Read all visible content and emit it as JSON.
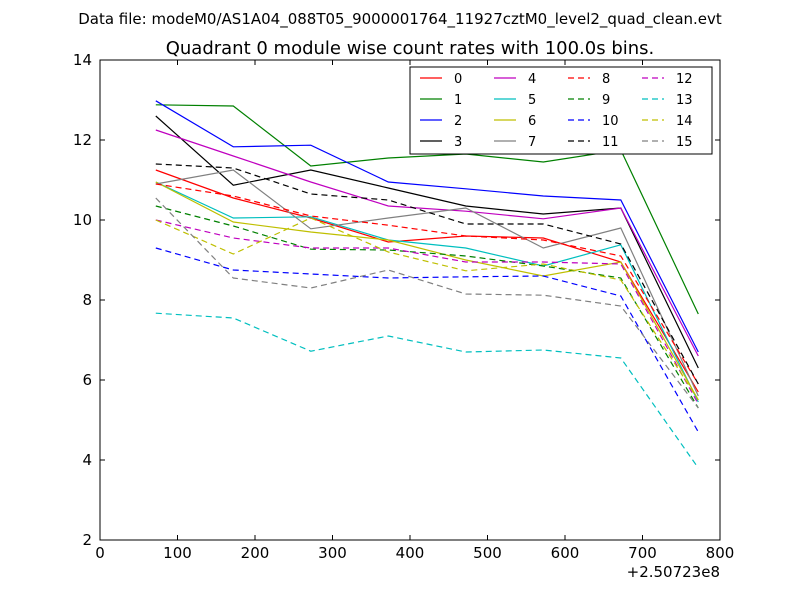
{
  "chart_data": {
    "type": "line",
    "suptitle": "Data file: modeM0/AS1A04_088T05_9000001764_11927cztM0_level2_quad_clean.evt",
    "title": "Quadrant 0 module wise count rates with 100.0s bins.",
    "xlabel": "",
    "ylabel": "",
    "x_offset_label": "+2.50723e8",
    "xlim": [
      0,
      800
    ],
    "ylim": [
      2,
      14
    ],
    "xticks": [
      0,
      100,
      200,
      300,
      400,
      500,
      600,
      700,
      800
    ],
    "yticks": [
      2,
      4,
      6,
      8,
      10,
      12,
      14
    ],
    "x": [
      72,
      172,
      272,
      372,
      472,
      572,
      672,
      772
    ],
    "legend_location": "top-right",
    "legend_columns": 4,
    "series": [
      {
        "name": "0",
        "color": "#ff0000",
        "dash": "solid",
        "values": [
          11.25,
          10.55,
          10.05,
          9.45,
          9.6,
          9.55,
          8.95,
          5.7
        ]
      },
      {
        "name": "1",
        "color": "#008000",
        "dash": "solid",
        "values": [
          12.88,
          12.85,
          11.35,
          11.55,
          11.65,
          11.45,
          11.75,
          7.65
        ]
      },
      {
        "name": "2",
        "color": "#0000ff",
        "dash": "solid",
        "values": [
          12.98,
          11.83,
          11.87,
          10.95,
          10.78,
          10.6,
          10.5,
          6.7
        ]
      },
      {
        "name": "3",
        "color": "#000000",
        "dash": "solid",
        "values": [
          12.6,
          10.87,
          11.25,
          10.8,
          10.35,
          10.15,
          10.3,
          6.3
        ]
      },
      {
        "name": "4",
        "color": "#bf00bf",
        "dash": "solid",
        "values": [
          12.25,
          11.6,
          10.95,
          10.35,
          10.22,
          10.03,
          10.3,
          6.6
        ]
      },
      {
        "name": "5",
        "color": "#00bfbf",
        "dash": "solid",
        "values": [
          10.95,
          10.05,
          10.08,
          9.5,
          9.3,
          8.85,
          9.38,
          5.45
        ]
      },
      {
        "name": "6",
        "color": "#bfbf00",
        "dash": "solid",
        "values": [
          10.95,
          9.95,
          9.7,
          9.5,
          9.0,
          8.6,
          8.95,
          5.5
        ]
      },
      {
        "name": "7",
        "color": "#808080",
        "dash": "solid",
        "values": [
          10.9,
          11.25,
          9.78,
          10.05,
          10.3,
          9.3,
          9.8,
          5.6
        ]
      },
      {
        "name": "8",
        "color": "#ff0000",
        "dash": "dashed",
        "values": [
          10.9,
          10.6,
          10.1,
          9.87,
          9.6,
          9.5,
          9.1,
          5.9
        ]
      },
      {
        "name": "9",
        "color": "#008000",
        "dash": "dashed",
        "values": [
          10.35,
          9.85,
          9.27,
          9.25,
          9.1,
          8.85,
          8.55,
          5.3
        ]
      },
      {
        "name": "10",
        "color": "#0000ff",
        "dash": "dashed",
        "values": [
          9.3,
          8.75,
          8.65,
          8.55,
          8.58,
          8.6,
          8.1,
          4.7
        ]
      },
      {
        "name": "11",
        "color": "#000000",
        "dash": "dashed",
        "values": [
          11.4,
          11.3,
          10.65,
          10.5,
          9.9,
          9.9,
          9.4,
          5.9
        ]
      },
      {
        "name": "12",
        "color": "#bf00bf",
        "dash": "dashed",
        "values": [
          10.0,
          9.55,
          9.3,
          9.3,
          8.95,
          8.95,
          8.9,
          5.4
        ]
      },
      {
        "name": "13",
        "color": "#00bfbf",
        "dash": "dashed",
        "values": [
          7.67,
          7.55,
          6.72,
          7.1,
          6.7,
          6.75,
          6.55,
          3.8
        ]
      },
      {
        "name": "14",
        "color": "#bfbf00",
        "dash": "dashed",
        "values": [
          10.0,
          9.15,
          10.05,
          9.2,
          8.73,
          8.9,
          8.5,
          5.5
        ]
      },
      {
        "name": "15",
        "color": "#808080",
        "dash": "dashed",
        "values": [
          10.55,
          8.55,
          8.3,
          8.75,
          8.15,
          8.12,
          7.85,
          5.3
        ]
      }
    ]
  }
}
